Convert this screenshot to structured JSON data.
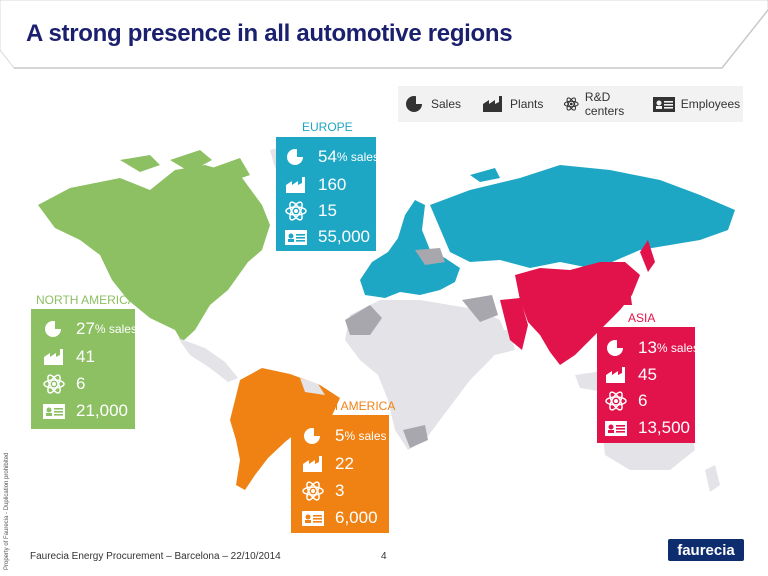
{
  "title": "A strong presence in all automotive regions",
  "legend": {
    "sales": "Sales",
    "plants": "Plants",
    "rd": "R&D centers",
    "employees": "Employees"
  },
  "colors": {
    "europe": "#1ea7c5",
    "north_america": "#8cc063",
    "south_america": "#f08214",
    "asia": "#e2124a",
    "other": "#e3e3e8",
    "grey": "#a7a7ad",
    "title": "#1a1f6e"
  },
  "regions": {
    "europe": {
      "name": "EUROPE",
      "sales_pct": "54",
      "sales_suffix": "% sales",
      "plants": "160",
      "rd": "15",
      "employees": "55,000"
    },
    "north_america": {
      "name": "NORTH AMERICA",
      "sales_pct": "27",
      "sales_suffix": "% sales",
      "plants": "41",
      "rd": "6",
      "employees": "21,000"
    },
    "south_america": {
      "name": "SOUTH AMERICA",
      "sales_pct": "5",
      "sales_suffix": "% sales",
      "plants": "22",
      "rd": "3",
      "employees": "6,000"
    },
    "asia": {
      "name": "ASIA",
      "sales_pct": "13",
      "sales_suffix": "% sales",
      "plants": "45",
      "rd": "6",
      "employees": "13,500"
    }
  },
  "footer": {
    "text": "Faurecia Energy Procurement – Barcelona – 22/10/2014",
    "page": "4",
    "confidential": "Property of Faurecia - Duplication prohibited",
    "logo": "faurecia"
  },
  "icons": [
    "pie-chart-icon",
    "factory-icon",
    "atom-icon",
    "id-card-icon"
  ]
}
